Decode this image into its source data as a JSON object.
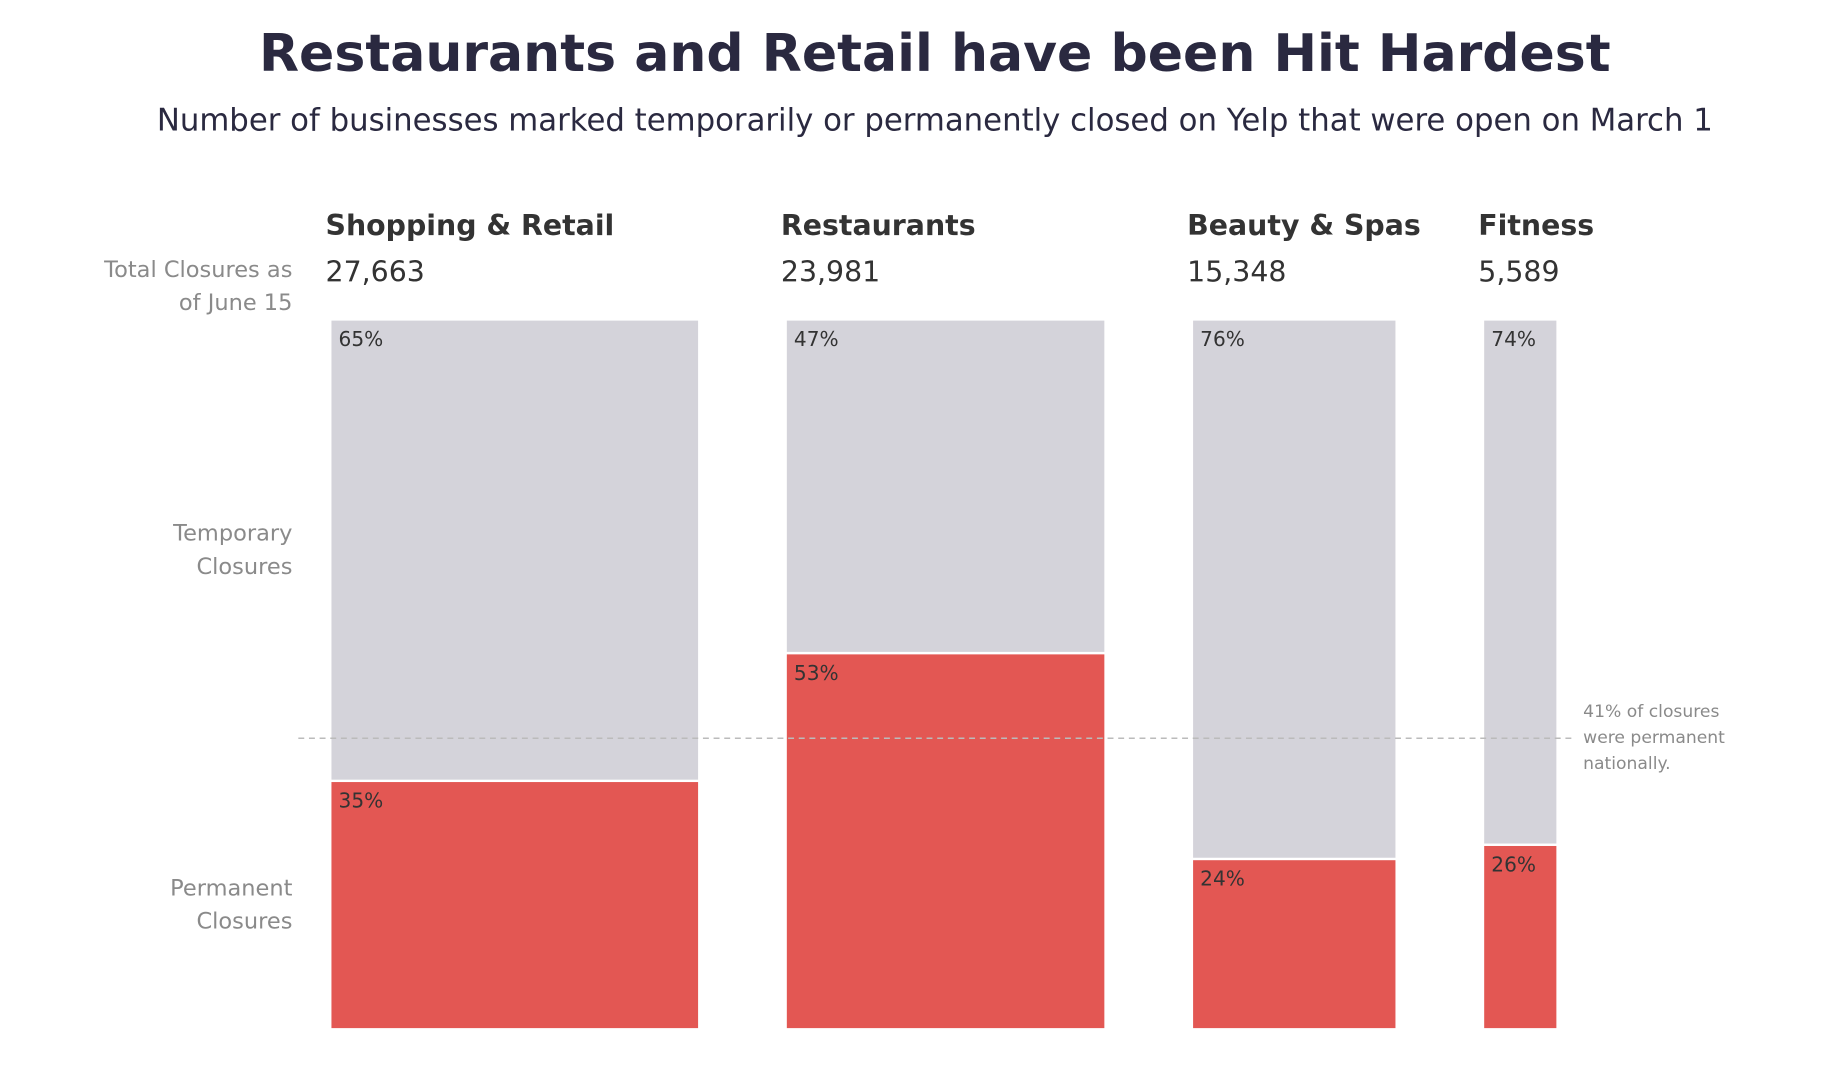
{
  "chart_data": {
    "type": "mekko",
    "title": "Restaurants and Retail have been Hit Hardest",
    "subtitle": "Number of businesses marked temporarily or permanently closed on Yelp that were open on March 1",
    "categories": [
      "Shopping & Retail",
      "Restaurants",
      "Beauty & Spas",
      "Fitness"
    ],
    "totals_label": "Total Closures as of June 15",
    "totals": [
      27663,
      23981,
      15348,
      5589
    ],
    "totals_labels": [
      "27,663",
      "23,981",
      "15,348",
      "5,589"
    ],
    "series": [
      {
        "name": "Temporary Closures",
        "color": "#d4d3da",
        "values": [
          65,
          47,
          76,
          74
        ],
        "value_labels": [
          "65%",
          "47%",
          "76%",
          "74%"
        ]
      },
      {
        "name": "Permanent Closures",
        "color": "#e35753",
        "values": [
          35,
          53,
          24,
          26
        ],
        "value_labels": [
          "35%",
          "53%",
          "24%",
          "26%"
        ]
      }
    ],
    "ylim": [
      0,
      100
    ],
    "reference_line": {
      "value": 41,
      "label": "41% of closures were permanent nationally."
    }
  }
}
